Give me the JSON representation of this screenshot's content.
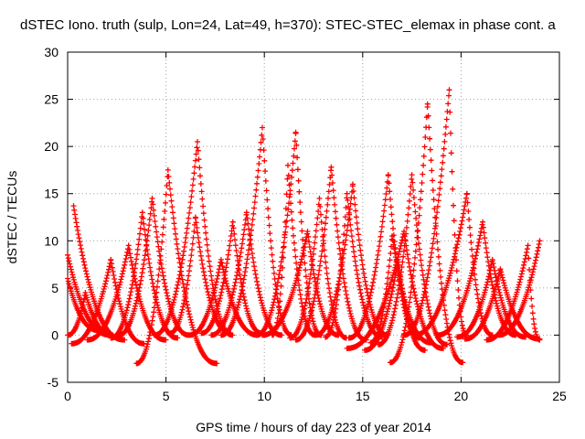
{
  "chart_data": {
    "type": "scatter",
    "title": "dSTEC Iono. truth (sulp, Lon=24, Lat=49, h=370): STEC-STEC_elemax in phase cont. a",
    "xlabel": "GPS time / hours of day 223 of year 2014",
    "ylabel": "dSTEC  / TECUs",
    "xlim": [
      0,
      25
    ],
    "ylim": [
      -5,
      30
    ],
    "xticks": [
      0,
      5,
      10,
      15,
      20,
      25
    ],
    "yticks": [
      -5,
      0,
      5,
      10,
      15,
      20,
      25,
      30
    ],
    "grid": true,
    "marker": "plus",
    "color": "#ff0000",
    "passes": [
      {
        "start": 0.0,
        "peak_time": 0.0,
        "end": 2.2,
        "peak": 8.5,
        "min": 0.0
      },
      {
        "start": 0.0,
        "peak_time": 0.0,
        "end": 1.6,
        "peak": 6.0,
        "min": 0.5
      },
      {
        "start": 0.3,
        "peak_time": 0.3,
        "end": 2.9,
        "peak": 13.7,
        "min": -0.5
      },
      {
        "start": 0.0,
        "peak_time": 0.9,
        "end": 2.3,
        "peak": 4.5,
        "min": 0.0
      },
      {
        "start": 0.2,
        "peak_time": 2.2,
        "end": 3.9,
        "peak": 8.0,
        "min": -0.9
      },
      {
        "start": 1.0,
        "peak_time": 3.1,
        "end": 5.0,
        "peak": 9.5,
        "min": -0.5
      },
      {
        "start": 2.2,
        "peak_time": 3.8,
        "end": 5.6,
        "peak": 13.0,
        "min": -0.3
      },
      {
        "start": 2.6,
        "peak_time": 4.3,
        "end": 6.2,
        "peak": 14.5,
        "min": 0.0
      },
      {
        "start": 3.5,
        "peak_time": 5.1,
        "end": 7.6,
        "peak": 17.5,
        "min": -3.0
      },
      {
        "start": 4.4,
        "peak_time": 6.6,
        "end": 8.4,
        "peak": 20.5,
        "min": 0.0
      },
      {
        "start": 5.2,
        "peak_time": 6.5,
        "end": 8.3,
        "peak": 12.5,
        "min": 0.2
      },
      {
        "start": 6.2,
        "peak_time": 7.8,
        "end": 9.7,
        "peak": 8.0,
        "min": 0.0
      },
      {
        "start": 6.8,
        "peak_time": 8.4,
        "end": 9.9,
        "peak": 12.0,
        "min": 0.2
      },
      {
        "start": 7.3,
        "peak_time": 9.1,
        "end": 10.9,
        "peak": 13.0,
        "min": 0.0
      },
      {
        "start": 7.8,
        "peak_time": 9.9,
        "end": 11.4,
        "peak": 22.0,
        "min": 0.0
      },
      {
        "start": 9.6,
        "peak_time": 11.6,
        "end": 12.9,
        "peak": 21.5,
        "min": 0.0
      },
      {
        "start": 10.4,
        "peak_time": 11.2,
        "end": 12.6,
        "peak": 18.0,
        "min": 0.0
      },
      {
        "start": 9.9,
        "peak_time": 12.2,
        "end": 13.8,
        "peak": 11.0,
        "min": 0.0
      },
      {
        "start": 11.3,
        "peak_time": 12.8,
        "end": 14.2,
        "peak": 14.5,
        "min": -0.3
      },
      {
        "start": 11.6,
        "peak_time": 13.4,
        "end": 15.2,
        "peak": 17.8,
        "min": -0.5
      },
      {
        "start": 12.6,
        "peak_time": 14.5,
        "end": 16.3,
        "peak": 16.0,
        "min": 0.0
      },
      {
        "start": 13.1,
        "peak_time": 14.2,
        "end": 16.0,
        "peak": 15.0,
        "min": -0.2
      },
      {
        "start": 14.3,
        "peak_time": 16.3,
        "end": 17.9,
        "peak": 17.0,
        "min": -0.3
      },
      {
        "start": 15.4,
        "peak_time": 16.5,
        "end": 18.5,
        "peak": 10.5,
        "min": -0.8
      },
      {
        "start": 15.1,
        "peak_time": 16.8,
        "end": 18.2,
        "peak": 8.0,
        "min": -1.6
      },
      {
        "start": 14.2,
        "peak_time": 17.1,
        "end": 19.1,
        "peak": 11.0,
        "min": -1.4
      },
      {
        "start": 15.8,
        "peak_time": 17.5,
        "end": 19.3,
        "peak": 17.0,
        "min": -1.0
      },
      {
        "start": 16.4,
        "peak_time": 18.3,
        "end": 20.1,
        "peak": 24.5,
        "min": -2.9
      },
      {
        "start": 17.1,
        "peak_time": 19.4,
        "end": 20.3,
        "peak": 26.0,
        "min": 0.0
      },
      {
        "start": 17.6,
        "peak_time": 20.3,
        "end": 21.6,
        "peak": 15.0,
        "min": 0.0
      },
      {
        "start": 18.8,
        "peak_time": 21.1,
        "end": 22.8,
        "peak": 12.0,
        "min": 0.0
      },
      {
        "start": 19.8,
        "peak_time": 21.6,
        "end": 23.3,
        "peak": 8.0,
        "min": -0.2
      },
      {
        "start": 20.2,
        "peak_time": 22.0,
        "end": 24.0,
        "peak": 7.0,
        "min": -0.4
      },
      {
        "start": 21.3,
        "peak_time": 23.4,
        "end": 24.0,
        "peak": 9.5,
        "min": -0.5
      },
      {
        "start": 21.9,
        "peak_time": 24.0,
        "end": 24.0,
        "peak": 10.0,
        "min": 0.0
      }
    ]
  }
}
